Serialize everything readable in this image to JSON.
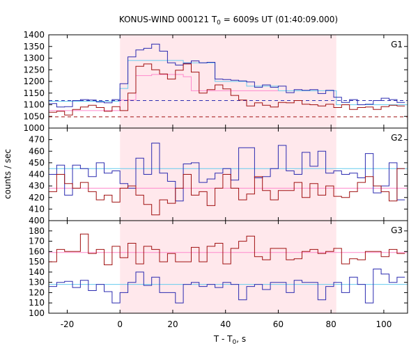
{
  "chart_data": {
    "type": "line",
    "title_main": "KONUS-WIND 000121 T",
    "title_sub": "0",
    "title_rest": " = 6009s UT (01:40:09.000)",
    "xlabel_main": "T - T",
    "xlabel_sub": "0",
    "xlabel_rest": ", s",
    "ylabel": "counts / sec",
    "xlim": [
      -27,
      109
    ],
    "x_ticks": [
      -20,
      0,
      20,
      40,
      60,
      80,
      100
    ],
    "interval": {
      "start": 0,
      "end": 82,
      "color": "#ffe8ec"
    },
    "colors": {
      "blue": "#2b2bb0",
      "red": "#a01010",
      "light_blue": "#66ccee",
      "pink": "#ff88cc"
    },
    "panels": [
      {
        "label": "G1",
        "ylim": [
          1000,
          1400
        ],
        "y_ticks": [
          1000,
          1050,
          1100,
          1150,
          1200,
          1250,
          1300,
          1350,
          1400
        ],
        "bin_edges": [
          -27,
          -24,
          -21,
          -18,
          -15,
          -12,
          -9,
          -6,
          -3,
          0,
          3,
          6,
          9,
          12,
          15,
          18,
          21,
          24,
          27,
          30,
          33,
          36,
          39,
          42,
          45,
          48,
          51,
          54,
          57,
          60,
          63,
          66,
          69,
          72,
          75,
          78,
          81,
          84,
          87,
          90,
          93,
          96,
          99,
          102,
          105,
          108
        ],
        "series": [
          {
            "color_key": "blue",
            "values": [
              1105,
              1090,
              1092,
              1118,
              1122,
              1120,
              1112,
              1108,
              1122,
              1190,
              1305,
              1335,
              1342,
              1360,
              1330,
              1280,
              1270,
              1278,
              1288,
              1280,
              1282,
              1210,
              1208,
              1205,
              1202,
              1198,
              1175,
              1185,
              1175,
              1180,
              1152,
              1165,
              1162,
              1165,
              1148,
              1162,
              1132,
              1110,
              1122,
              1100,
              1102,
              1118,
              1128,
              1122,
              1110
            ]
          },
          {
            "color_key": "red",
            "values": [
              1068,
              1072,
              1056,
              1080,
              1090,
              1098,
              1088,
              1072,
              1092,
              1075,
              1150,
              1265,
              1275,
              1250,
              1232,
              1210,
              1248,
              1275,
              1240,
              1150,
              1165,
              1185,
              1168,
              1140,
              1120,
              1095,
              1108,
              1098,
              1090,
              1110,
              1108,
              1118,
              1102,
              1100,
              1095,
              1102,
              1088,
              1100,
              1080,
              1088,
              1090,
              1080,
              1092,
              1098,
              1095
            ]
          }
        ],
        "fits": [
          {
            "color_key": "light_blue",
            "dashed": false,
            "points": [
              [
                -27,
                1115
              ],
              [
                0,
                1115
              ],
              [
                0,
                1170
              ],
              [
                3,
                1170
              ],
              [
                3,
                1290
              ],
              [
                24,
                1290
              ],
              [
                24,
                1280
              ],
              [
                36,
                1280
              ],
              [
                36,
                1200
              ],
              [
                48,
                1200
              ],
              [
                48,
                1180
              ],
              [
                60,
                1180
              ],
              [
                60,
                1160
              ],
              [
                82,
                1160
              ],
              [
                82,
                1100
              ],
              [
                109,
                1100
              ]
            ]
          },
          {
            "color_key": "pink",
            "dashed": false,
            "points": [
              [
                -27,
                1075
              ],
              [
                0,
                1075
              ],
              [
                0,
                1120
              ],
              [
                6,
                1120
              ],
              [
                6,
                1225
              ],
              [
                12,
                1225
              ],
              [
                12,
                1230
              ],
              [
                24,
                1230
              ],
              [
                24,
                1225
              ],
              [
                24,
                1220
              ],
              [
                27,
                1220
              ],
              [
                27,
                1160
              ],
              [
                54,
                1160
              ],
              [
                54,
                1160
              ],
              [
                60,
                1160
              ]
            ]
          },
          {
            "color_key": "blue",
            "dashed": true,
            "points": [
              [
                -27,
                1118
              ],
              [
                109,
                1118
              ]
            ]
          },
          {
            "color_key": "red",
            "dashed": true,
            "points": [
              [
                -27,
                1048
              ],
              [
                109,
                1048
              ]
            ]
          }
        ]
      },
      {
        "label": "G2",
        "ylim": [
          400,
          480
        ],
        "y_ticks": [
          400,
          410,
          420,
          430,
          440,
          450,
          460,
          470
        ],
        "bin_edges": [
          -27,
          -24,
          -21,
          -18,
          -15,
          -12,
          -9,
          -6,
          -3,
          0,
          3,
          6,
          9,
          12,
          15,
          18,
          21,
          24,
          27,
          30,
          33,
          36,
          39,
          42,
          45,
          48,
          51,
          54,
          57,
          60,
          63,
          66,
          69,
          72,
          75,
          78,
          81,
          84,
          87,
          90,
          93,
          96,
          99,
          102,
          105,
          108
        ],
        "series": [
          {
            "color_key": "blue",
            "values": [
              440,
              448,
              422,
              448,
              445,
              438,
              450,
              441,
              443,
              432,
              428,
              454,
              440,
              467,
              441,
              434,
              417,
              449,
              450,
              433,
              436,
              441,
              445,
              435,
              463,
              463,
              437,
              438,
              445,
              465,
              443,
              440,
              459,
              447,
              460,
              441,
              443,
              440,
              441,
              437,
              458,
              424,
              430,
              450,
              418
            ]
          },
          {
            "color_key": "red",
            "values": [
              425,
              440,
              432,
              428,
              433,
              425,
              418,
              422,
              416,
              428,
              430,
              422,
              414,
              405,
              418,
              415,
              428,
              440,
              422,
              425,
              413,
              428,
              440,
              428,
              418,
              423,
              438,
              426,
              418,
              426,
              426,
              433,
              420,
              432,
              422,
              430,
              421,
              420,
              425,
              433,
              438,
              430,
              425,
              417,
              445
            ]
          }
        ],
        "fits": [
          {
            "color_key": "light_blue",
            "dashed": false,
            "points": [
              [
                -27,
                445
              ],
              [
                109,
                445
              ]
            ]
          },
          {
            "color_key": "pink",
            "dashed": false,
            "points": [
              [
                -27,
                428
              ],
              [
                109,
                428
              ]
            ]
          }
        ]
      },
      {
        "label": "G3",
        "ylim": [
          100,
          190
        ],
        "y_ticks": [
          100,
          110,
          120,
          130,
          140,
          150,
          160,
          170,
          180
        ],
        "bin_edges": [
          -27,
          -24,
          -21,
          -18,
          -15,
          -12,
          -9,
          -6,
          -3,
          0,
          3,
          6,
          9,
          12,
          15,
          18,
          21,
          24,
          27,
          30,
          33,
          36,
          39,
          42,
          45,
          48,
          51,
          54,
          57,
          60,
          63,
          66,
          69,
          72,
          75,
          78,
          81,
          84,
          87,
          90,
          93,
          96,
          99,
          102,
          105,
          108
        ],
        "series": [
          {
            "color_key": "red",
            "values": [
              150,
              162,
              160,
              160,
              177,
              158,
              162,
              147,
              165,
              154,
              168,
              148,
              165,
              162,
              150,
              158,
              150,
              150,
              164,
              150,
              165,
              168,
              148,
              163,
              170,
              175,
              155,
              152,
              163,
              163,
              152,
              153,
              160,
              162,
              158,
              160,
              163,
              148,
              153,
              152,
              160,
              160,
              155,
              162,
              158
            ]
          },
          {
            "color_key": "blue",
            "values": [
              126,
              130,
              131,
              125,
              132,
              122,
              128,
              121,
              110,
              120,
              130,
              140,
              127,
              135,
              120,
              120,
              110,
              128,
              130,
              126,
              128,
              125,
              130,
              128,
              113,
              126,
              128,
              123,
              130,
              130,
              120,
              132,
              130,
              130,
              113,
              126,
              130,
              120,
              135,
              128,
              110,
              143,
              138,
              130,
              135
            ]
          }
        ],
        "fits": [
          {
            "color_key": "pink",
            "dashed": false,
            "points": [
              [
                -27,
                159
              ],
              [
                109,
                159
              ]
            ]
          },
          {
            "color_key": "light_blue",
            "dashed": false,
            "points": [
              [
                -27,
                128
              ],
              [
                109,
                128
              ]
            ]
          }
        ]
      }
    ]
  }
}
